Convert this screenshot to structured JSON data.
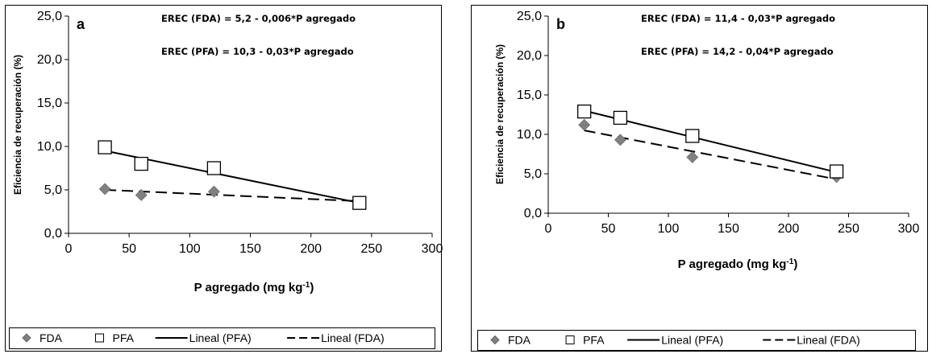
{
  "chart_data": [
    {
      "type": "scatter",
      "panel_label": "a",
      "xlabel": "P agregado (mg kg",
      "xlabel_sup": "-1",
      "xlabel_tail": ")",
      "ylabel": "Eficiencia de recuperación  (%)",
      "xlim": [
        0,
        300
      ],
      "ylim": [
        0,
        25
      ],
      "xticks": [
        "0",
        "50",
        "100",
        "150",
        "200",
        "250",
        "300"
      ],
      "yticks": [
        "0,0",
        "5,0",
        "10,0",
        "15,0",
        "20,0",
        "25,0"
      ],
      "equations": [
        "EREC (FDA) = 5,2 - 0,006*P agregado",
        "EREC (PFA) = 10,3 - 0,03*P agregado"
      ],
      "series": [
        {
          "name": "FDA",
          "marker": "diamond",
          "color": "#808080",
          "x": [
            30,
            60,
            120,
            240
          ],
          "y": [
            5.1,
            4.4,
            4.8,
            3.5
          ]
        },
        {
          "name": "PFA",
          "marker": "square",
          "color": "#000000",
          "x": [
            30,
            60,
            120,
            240
          ],
          "y": [
            9.9,
            8.0,
            7.5,
            3.5
          ]
        }
      ],
      "trendlines": [
        {
          "name": "Lineal (PFA)",
          "style": "solid",
          "x": [
            30,
            240
          ],
          "y": [
            9.5,
            3.5
          ]
        },
        {
          "name": "Lineal (FDA)",
          "style": "dashed",
          "x": [
            30,
            240
          ],
          "y": [
            5.0,
            3.7
          ]
        }
      ],
      "legend": [
        "FDA",
        "PFA",
        "Lineal (PFA)",
        "Lineal (FDA)"
      ]
    },
    {
      "type": "scatter",
      "panel_label": "b",
      "xlabel": "P agregado (mg kg",
      "xlabel_sup": "-1",
      "xlabel_tail": ")",
      "ylabel": "Eficiencia de recuperación  (%)",
      "xlim": [
        0,
        300
      ],
      "ylim": [
        0,
        25
      ],
      "xticks": [
        "0",
        "50",
        "100",
        "150",
        "200",
        "250",
        "300"
      ],
      "yticks": [
        "0,0",
        "5,0",
        "10,0",
        "15,0",
        "20,0",
        "25,0"
      ],
      "equations": [
        "EREC (FDA) = 11,4 - 0,03*P agregado",
        "EREC (PFA) = 14,2 - 0,04*P agregado"
      ],
      "series": [
        {
          "name": "FDA",
          "marker": "diamond",
          "color": "#808080",
          "x": [
            30,
            60,
            120,
            240
          ],
          "y": [
            11.2,
            9.3,
            7.1,
            4.6
          ]
        },
        {
          "name": "PFA",
          "marker": "square",
          "color": "#000000",
          "x": [
            30,
            60,
            120,
            240
          ],
          "y": [
            12.9,
            12.1,
            9.8,
            5.3
          ]
        }
      ],
      "trendlines": [
        {
          "name": "Lineal (PFA)",
          "style": "solid",
          "x": [
            30,
            240
          ],
          "y": [
            13.0,
            5.2
          ]
        },
        {
          "name": "Lineal (FDA)",
          "style": "dashed",
          "x": [
            30,
            240
          ],
          "y": [
            10.5,
            4.3
          ]
        }
      ],
      "legend": [
        "FDA",
        "PFA",
        "Lineal (PFA)",
        "Lineal (FDA)"
      ]
    }
  ]
}
